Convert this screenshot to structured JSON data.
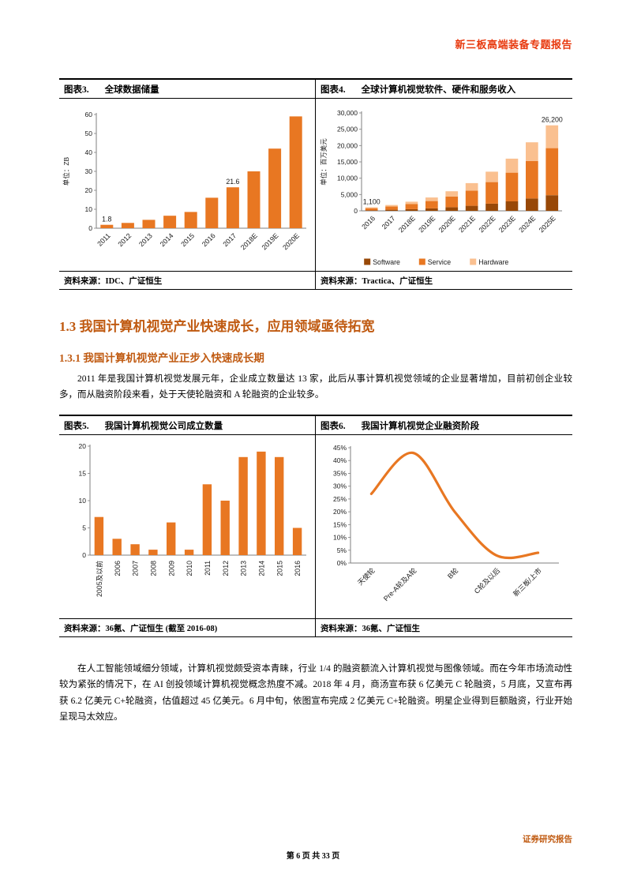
{
  "page": {
    "header_right": "新三板高端装备专题报告",
    "footer_label": "证券研究报告",
    "page_indicator": "第 6 页 共 33 页"
  },
  "colors": {
    "header_red": "#e8380d",
    "heading_orange": "#c05a11",
    "bar_orange": "#e87722",
    "stack_dark": "#984807",
    "stack_light": "#fac090"
  },
  "sections": {
    "h13": "1.3 我国计算机视觉产业快速成长，应用领域亟待拓宽",
    "h131": "1.3.1 我国计算机视觉产业正步入快速成长期",
    "para1": "2011 年是我国计算机视觉发展元年，企业成立数量达 13 家，此后从事计算机视觉领域的企业显著增加，目前初创企业较多，而从融资阶段来看，处于天使轮融资和 A 轮融资的企业较多。",
    "para2": "在人工智能领域细分领域，计算机视觉颇受资本青睐，行业 1/4 的融资额流入计算机视觉与图像领域。而在今年市场流动性较为紧张的情况下，在 AI 创投领域计算机视觉概念热度不减。2018 年 4 月，商汤宣布获 6 亿美元 C 轮融资，5 月底，又宣布再获 6.2 亿美元 C+轮融资，估值超过 45 亿美元。6 月中旬，依图宣布完成 2 亿美元 C+轮融资。明星企业得到巨额融资，行业开始呈现马太效应。"
  },
  "figures": {
    "fig3": {
      "label": "图表3.",
      "title": "全球数据储量",
      "source": "资料来源：IDC、广证恒生"
    },
    "fig4": {
      "label": "图表4.",
      "title": "全球计算机视觉软件、硬件和服务收入",
      "source": "资料来源：Tractica、广证恒生"
    },
    "fig5": {
      "label": "图表5.",
      "title": "我国计算机视觉公司成立数量",
      "source": "资料来源：36氪、广证恒生 (截至 2016-08)"
    },
    "fig6": {
      "label": "图表6.",
      "title": "我国计算机视觉企业融资阶段",
      "source": "资料来源：36氪、广证恒生"
    }
  },
  "chart_data": [
    {
      "id": "fig3",
      "type": "bar",
      "title": "全球数据储量",
      "ylabel": "单位：ZB",
      "categories": [
        "2011",
        "2012",
        "2013",
        "2014",
        "2015",
        "2016",
        "2017",
        "2018E",
        "2019E",
        "2020E"
      ],
      "values": [
        1.8,
        2.8,
        4.4,
        6.6,
        8.6,
        16.1,
        21.6,
        30,
        42,
        59
      ],
      "ylim": [
        0,
        60
      ],
      "yticks": [
        0,
        10,
        20,
        30,
        40,
        50,
        60
      ],
      "ytick_labels": [
        "0",
        "10",
        "20",
        "30",
        "40",
        "50",
        "60"
      ],
      "bar_color": "#e87722",
      "grid": false,
      "annotations": [
        {
          "category": "2011",
          "text": "1.8"
        },
        {
          "category": "2017",
          "text": "21.6"
        }
      ]
    },
    {
      "id": "fig4",
      "type": "bar-stacked",
      "title": "全球计算机视觉软件、硬件和服务收入",
      "ylabel": "单位：百万美元",
      "categories": [
        "2016",
        "2017",
        "2018E",
        "2019E",
        "2020E",
        "2021E",
        "2022E",
        "2023E",
        "2024E",
        "2025E"
      ],
      "series": [
        {
          "name": "Software",
          "color": "#984807",
          "values": [
            200,
            330,
            500,
            750,
            1100,
            1550,
            2200,
            2900,
            3800,
            4800
          ]
        },
        {
          "name": "Service",
          "color": "#e87722",
          "values": [
            600,
            990,
            1550,
            2250,
            3300,
            4650,
            6600,
            8800,
            11500,
            14400
          ]
        },
        {
          "name": "Hardware",
          "color": "#fac090",
          "values": [
            300,
            480,
            750,
            1100,
            1600,
            2300,
            3200,
            4300,
            5700,
            7000
          ]
        }
      ],
      "ylim": [
        0,
        30000
      ],
      "yticks": [
        0,
        5000,
        10000,
        15000,
        20000,
        25000,
        30000
      ],
      "ytick_labels": [
        "0",
        "5,000",
        "10,000",
        "15,000",
        "20,000",
        "25,000",
        "30,000"
      ],
      "legend_position": "bottom",
      "grid": false,
      "annotations": [
        {
          "category": "2016",
          "text": "1,100"
        },
        {
          "category": "2025E",
          "text": "26,200"
        }
      ]
    },
    {
      "id": "fig5",
      "type": "bar",
      "title": "我国计算机视觉公司成立数量",
      "ylabel": "",
      "categories": [
        "2005及以前",
        "2006",
        "2007",
        "2008",
        "2009",
        "2010",
        "2011",
        "2012",
        "2013",
        "2014",
        "2015",
        "2016"
      ],
      "values": [
        7,
        3,
        2,
        1,
        6,
        1,
        13,
        10,
        18,
        19,
        18,
        5
      ],
      "ylim": [
        0,
        20
      ],
      "yticks": [
        0,
        5,
        10,
        15,
        20
      ],
      "ytick_labels": [
        "0",
        "5",
        "10",
        "15",
        "20"
      ],
      "bar_color": "#e87722",
      "grid": false,
      "annotations": []
    },
    {
      "id": "fig6",
      "type": "line",
      "title": "我国计算机视觉企业融资阶段",
      "ylabel": "",
      "categories": [
        "天使轮",
        "Pre-A轮及A轮",
        "B轮",
        "C轮及以后",
        "新三板/上市"
      ],
      "values": [
        27,
        43,
        20,
        3,
        4
      ],
      "ylim": [
        0,
        45
      ],
      "yticks": [
        0,
        5,
        10,
        15,
        20,
        25,
        30,
        35,
        40,
        45
      ],
      "ytick_labels": [
        "0%",
        "5%",
        "10%",
        "15%",
        "20%",
        "25%",
        "30%",
        "35%",
        "40%",
        "45%"
      ],
      "line_color": "#e87722",
      "grid": false,
      "annotations": []
    }
  ]
}
